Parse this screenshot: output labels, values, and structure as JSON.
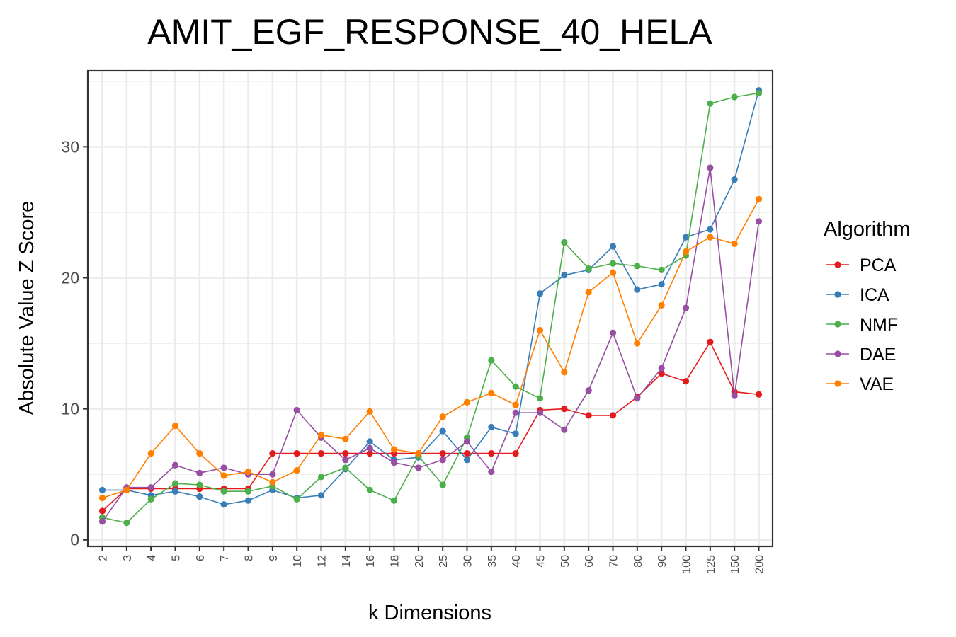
{
  "chart_data": {
    "type": "line",
    "title": "AMIT_EGF_RESPONSE_40_HELA",
    "xlabel": "k Dimensions",
    "ylabel": "Absolute Value Z Score",
    "categories": [
      "2",
      "3",
      "4",
      "5",
      "6",
      "7",
      "8",
      "9",
      "10",
      "12",
      "14",
      "16",
      "18",
      "20",
      "25",
      "30",
      "35",
      "40",
      "45",
      "50",
      "60",
      "70",
      "80",
      "90",
      "100",
      "125",
      "150",
      "200"
    ],
    "ylim": [
      -0.5,
      35.8
    ],
    "yticks": [
      0,
      10,
      20,
      30
    ],
    "grid": true,
    "legend": {
      "title": "Algorithm",
      "position": "right"
    },
    "series": [
      {
        "name": "PCA",
        "color": "#e41a1c",
        "values": [
          2.2,
          3.9,
          3.9,
          3.9,
          3.9,
          3.9,
          3.9,
          6.6,
          6.6,
          6.6,
          6.6,
          6.6,
          6.6,
          6.6,
          6.6,
          6.6,
          6.6,
          6.6,
          9.9,
          10.0,
          9.5,
          9.5,
          10.9,
          12.7,
          12.1,
          15.1,
          11.3,
          11.1
        ]
      },
      {
        "name": "ICA",
        "color": "#377eb8",
        "values": [
          3.8,
          3.8,
          3.4,
          3.7,
          3.3,
          2.7,
          3.0,
          3.8,
          3.2,
          3.4,
          5.4,
          7.5,
          6.1,
          6.3,
          8.3,
          6.1,
          8.6,
          8.1,
          18.8,
          20.2,
          20.6,
          22.4,
          19.1,
          19.5,
          23.1,
          23.7,
          27.5,
          34.3
        ]
      },
      {
        "name": "NMF",
        "color": "#4daf4a",
        "values": [
          1.7,
          1.3,
          3.1,
          4.3,
          4.2,
          3.7,
          3.7,
          4.1,
          3.1,
          4.8,
          5.5,
          3.8,
          3.0,
          6.4,
          4.2,
          7.8,
          13.7,
          11.7,
          10.8,
          22.7,
          20.7,
          21.1,
          20.9,
          20.6,
          21.7,
          33.3,
          33.8,
          34.1
        ]
      },
      {
        "name": "DAE",
        "color": "#984ea3",
        "values": [
          1.4,
          4.0,
          4.0,
          5.7,
          5.1,
          5.5,
          5.0,
          5.0,
          9.9,
          7.8,
          6.1,
          7.0,
          5.9,
          5.5,
          6.1,
          7.5,
          5.2,
          9.7,
          9.7,
          8.4,
          11.4,
          15.8,
          10.8,
          13.1,
          17.7,
          28.4,
          11.0,
          24.3
        ]
      },
      {
        "name": "VAE",
        "color": "#ff7f00",
        "values": [
          3.2,
          3.8,
          6.6,
          8.7,
          6.6,
          4.9,
          5.2,
          4.4,
          5.3,
          8.0,
          7.7,
          9.8,
          6.9,
          6.6,
          9.4,
          10.5,
          11.2,
          10.3,
          16.0,
          12.8,
          18.9,
          20.4,
          15.0,
          17.9,
          22.0,
          23.1,
          22.6,
          26.0
        ]
      }
    ]
  }
}
